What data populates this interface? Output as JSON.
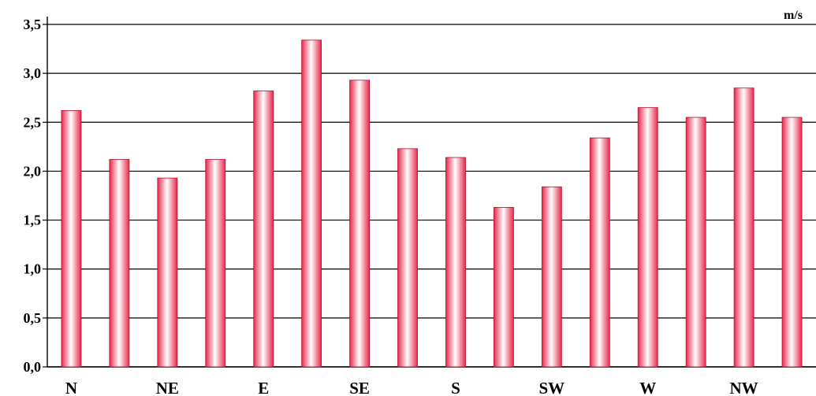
{
  "chart_data": {
    "type": "bar",
    "categories": [
      "N",
      "",
      "NE",
      "",
      "E",
      "",
      "SE",
      "",
      "S",
      "",
      "SW",
      "",
      "W",
      "",
      "NW",
      ""
    ],
    "values": [
      2.62,
      2.12,
      1.93,
      2.12,
      2.82,
      3.34,
      2.93,
      2.23,
      2.14,
      1.63,
      1.84,
      2.34,
      2.65,
      2.55,
      2.85,
      2.55
    ],
    "unit": "m/s",
    "ylim": [
      0,
      3.5
    ],
    "yticks": [
      "0,0",
      "0,5",
      "1,0",
      "1,5",
      "2,0",
      "2,5",
      "3,0",
      "3,5"
    ],
    "grid": true,
    "bar_color": "#e8284a",
    "bar_highlight": "#ffffff"
  }
}
